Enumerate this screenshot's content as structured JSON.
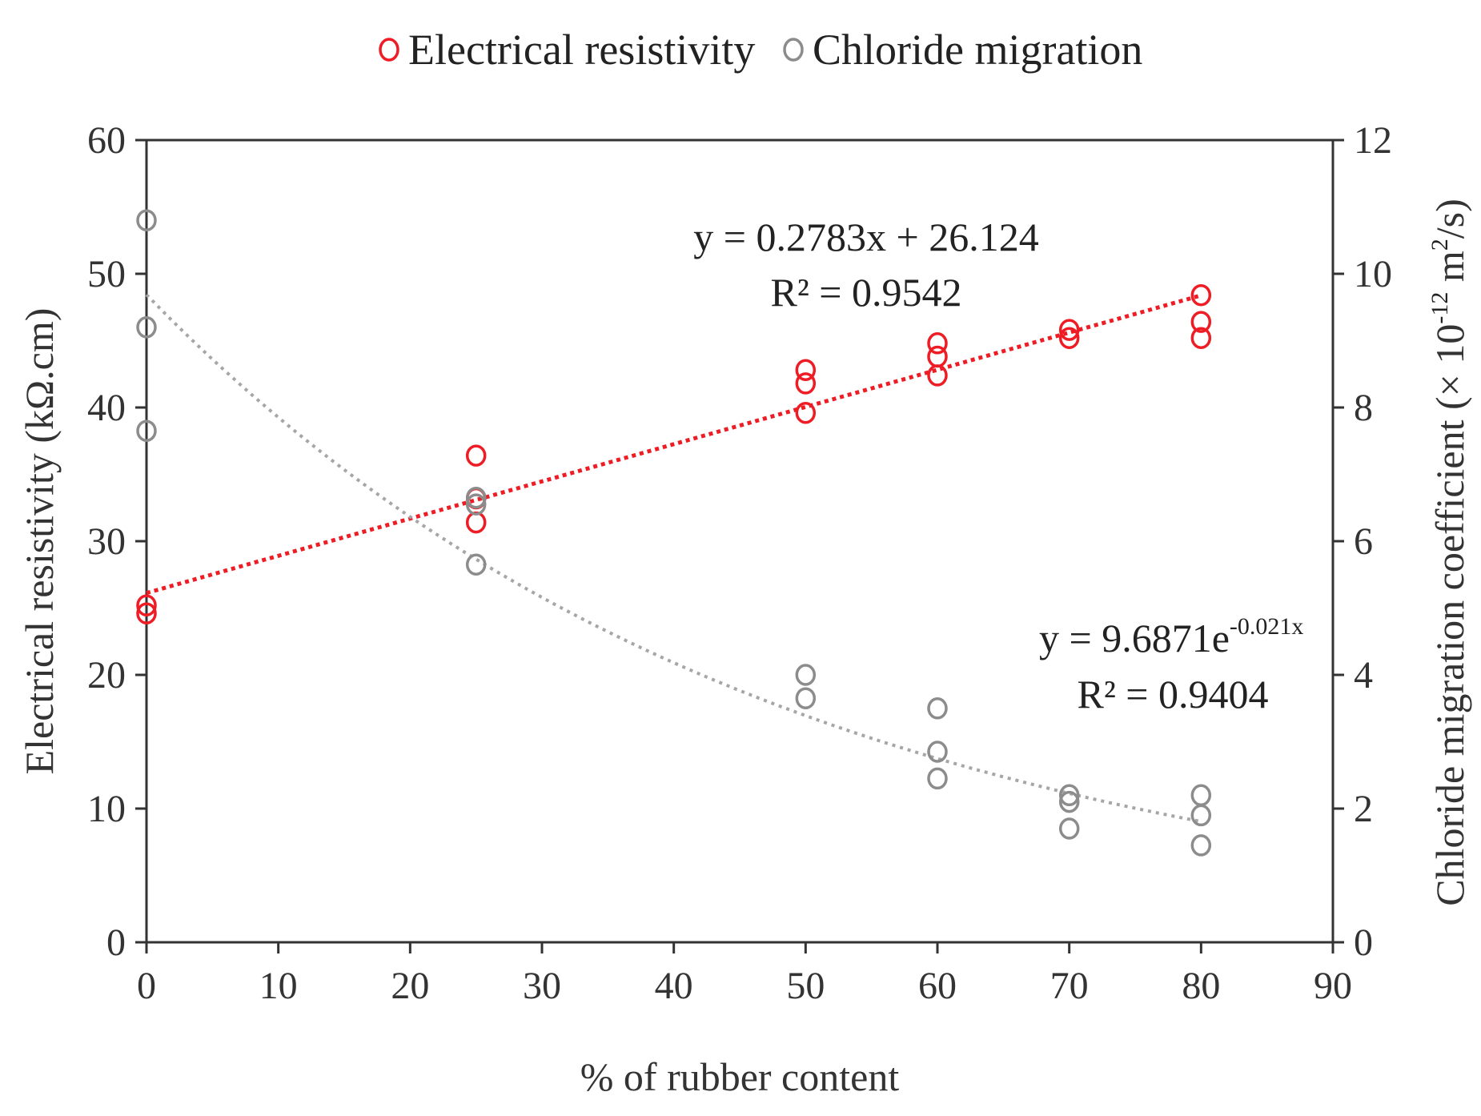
{
  "chart_data": {
    "type": "scatter",
    "legend": {
      "position": "top-center",
      "entries": [
        {
          "name": "Electrical resistivity",
          "color": "#ee1c24"
        },
        {
          "name": "Chloride migration",
          "color": "#8c8c8c"
        }
      ]
    },
    "x_axis": {
      "label": "% of rubber content",
      "min": 0,
      "max": 90,
      "ticks": [
        0,
        10,
        20,
        30,
        40,
        50,
        60,
        70,
        80,
        90
      ]
    },
    "y_axis_left": {
      "label": "Electrical resistivity (kΩ.cm)",
      "min": 0,
      "max": 60,
      "ticks": [
        0,
        10,
        20,
        30,
        40,
        50,
        60
      ]
    },
    "y_axis_right": {
      "label_main": "Chloride migration coefficient (× 10",
      "label_sup": "-12",
      "label_mid": " m",
      "label_sup2": "2",
      "label_end": "/s)",
      "min": 0,
      "max": 12,
      "ticks": [
        0,
        2,
        4,
        6,
        8,
        10,
        12
      ]
    },
    "series": [
      {
        "name": "Electrical resistivity",
        "axis": "left",
        "color": "#ee1c24",
        "points": [
          [
            0,
            25.2
          ],
          [
            0,
            24.6
          ],
          [
            25,
            36.4
          ],
          [
            25,
            33.2
          ],
          [
            25,
            31.4
          ],
          [
            50,
            42.8
          ],
          [
            50,
            41.8
          ],
          [
            50,
            39.6
          ],
          [
            60,
            44.8
          ],
          [
            60,
            43.8
          ],
          [
            60,
            42.4
          ],
          [
            70,
            45.8
          ],
          [
            70,
            45.2
          ],
          [
            80,
            48.4
          ],
          [
            80,
            46.4
          ],
          [
            80,
            45.2
          ]
        ],
        "trendline": {
          "type": "linear",
          "slope": 0.2783,
          "intercept": 26.124,
          "x_range": [
            0,
            80
          ]
        }
      },
      {
        "name": "Chloride migration",
        "axis": "right",
        "color": "#8c8c8c",
        "points": [
          [
            0,
            10.8
          ],
          [
            0,
            9.2
          ],
          [
            0,
            7.65
          ],
          [
            25,
            6.65
          ],
          [
            25,
            6.55
          ],
          [
            25,
            5.65
          ],
          [
            50,
            4.0
          ],
          [
            50,
            3.65
          ],
          [
            60,
            3.5
          ],
          [
            60,
            2.85
          ],
          [
            60,
            2.45
          ],
          [
            70,
            2.2
          ],
          [
            70,
            2.1
          ],
          [
            70,
            1.7
          ],
          [
            80,
            2.2
          ],
          [
            80,
            1.9
          ],
          [
            80,
            1.45
          ]
        ],
        "trendline": {
          "type": "exponential",
          "a": 9.6871,
          "b": -0.021,
          "x_range": [
            0,
            80
          ]
        }
      }
    ],
    "annotations": [
      {
        "id": "linear",
        "line1": "y = 0.2783x + 26.124",
        "line2": "R² = 0.9542"
      },
      {
        "id": "exp",
        "line1_pre": "y = 9.6871e",
        "line1_sup": "-0.021x",
        "line2": "R² = 0.9404"
      }
    ],
    "grid": false
  }
}
